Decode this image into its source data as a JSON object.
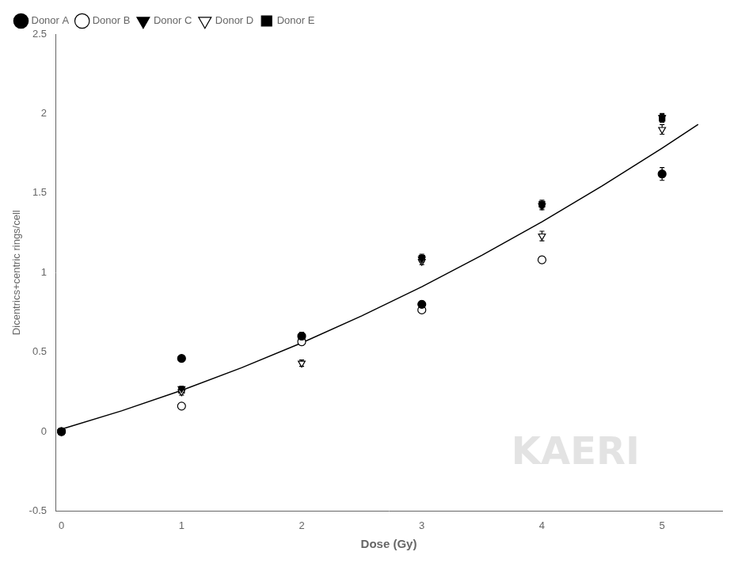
{
  "chart_data": {
    "type": "scatter",
    "xlabel": "Dose (Gy)",
    "ylabel": "Dicentrics+centric rings/cell",
    "xlim": [
      -0.05,
      5.5
    ],
    "ylim": [
      -0.5,
      2.5
    ],
    "xticks": [
      0,
      1,
      2,
      3,
      4,
      5
    ],
    "yticks": [
      -0.5,
      0.0,
      0.5,
      1.0,
      1.5,
      2.0,
      2.5
    ],
    "grid": false,
    "legend": "upper left",
    "annotations": [
      {
        "text": "KAERI",
        "color": "#d0d0d0"
      }
    ],
    "series": [
      {
        "name": "Donor A",
        "marker": "circle",
        "color": "#000000",
        "x": [
          0,
          1,
          2,
          3,
          5
        ],
        "values": [
          0.0,
          0.46,
          0.6,
          0.8,
          1.62
        ],
        "errors": [
          0.005,
          0.02,
          0.025,
          0.02,
          0.04
        ]
      },
      {
        "name": "Donor B",
        "marker": "circle_open",
        "color": "#000000",
        "x": [
          0,
          1,
          2,
          3,
          4
        ],
        "values": [
          0.0,
          0.16,
          0.565,
          0.765,
          1.08
        ],
        "errors": [
          0.005,
          0.015,
          0.02,
          0.02,
          0.02
        ]
      },
      {
        "name": "Donor C",
        "marker": "triangle_down",
        "color": "#000000",
        "x": [
          0,
          1,
          2,
          3,
          4,
          5
        ],
        "values": [
          0.0,
          0.27,
          0.595,
          1.085,
          1.42,
          1.975
        ],
        "errors": [
          0.005,
          0.015,
          0.025,
          0.02,
          0.025,
          0.025
        ]
      },
      {
        "name": "Donor D",
        "marker": "triangle_down_open",
        "color": "#000000",
        "x": [
          0,
          1,
          2,
          3,
          4,
          5
        ],
        "values": [
          0.0,
          0.25,
          0.43,
          1.07,
          1.23,
          1.9
        ],
        "errors": [
          0.005,
          0.02,
          0.02,
          0.02,
          0.03,
          0.03
        ]
      },
      {
        "name": "Donor E",
        "marker": "square",
        "color": "#000000",
        "x": [
          0,
          1,
          2,
          3,
          4,
          5
        ],
        "values": [
          0.0,
          0.26,
          0.59,
          1.09,
          1.43,
          1.97
        ],
        "errors": [
          0.005,
          0.015,
          0.025,
          0.025,
          0.025,
          0.025
        ]
      },
      {
        "type": "line",
        "color": "#000000",
        "x": [
          0,
          0.5,
          1,
          1.5,
          2,
          2.5,
          3,
          3.5,
          4,
          4.5,
          5,
          5.3
        ],
        "values": [
          0.0149,
          0.13,
          0.2588,
          0.4013,
          0.5575,
          0.7274,
          0.911,
          1.1083,
          1.3193,
          1.544,
          1.7824,
          1.932016
        ]
      }
    ]
  }
}
